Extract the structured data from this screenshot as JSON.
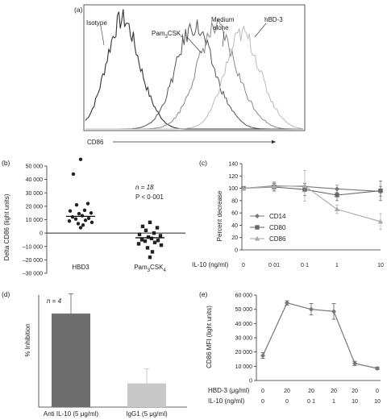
{
  "chart_data": [
    {
      "panel": "(a)",
      "type": "line",
      "xlabel": "CD86",
      "series": [
        {
          "name": "Isotype",
          "color": "#333333"
        },
        {
          "name": "Pam3CSK4",
          "color": "#555555"
        },
        {
          "name": "Medium alone",
          "color": "#888888"
        },
        {
          "name": "hBD-3",
          "color": "#bbbbbb"
        }
      ]
    },
    {
      "panel": "(b)",
      "type": "scatter",
      "ylabel": "Delta CD86 (light units)",
      "ylim": [
        -30000,
        50000
      ],
      "yticks": [
        "50 000",
        "40 000",
        "30 000",
        "20 000",
        "10 000",
        "0",
        "–10 000",
        "–20 000",
        "–30 000"
      ],
      "ytick_values": [
        50000,
        40000,
        30000,
        20000,
        10000,
        0,
        -10000,
        -20000,
        -30000
      ],
      "categories": [
        "HBD3",
        "Pam3CSK4"
      ],
      "annotation_n": "n = 18",
      "annotation_p": "P < 0·001",
      "groups": [
        {
          "name": "HBD3",
          "median": 12500,
          "values": [
            55000,
            44000,
            22000,
            21000,
            17000,
            16500,
            15000,
            14500,
            13000,
            12000,
            11000,
            10500,
            9500,
            9000,
            8000,
            7000,
            6000,
            4000
          ]
        },
        {
          "name": "Pam3CSK4",
          "median": -3500,
          "values": [
            8000,
            5000,
            4000,
            2000,
            0,
            -1000,
            -2000,
            -3000,
            -4000,
            -5000,
            -5500,
            -6000,
            -7000,
            -8000,
            -9000,
            -11000,
            -14000,
            -18000
          ]
        }
      ]
    },
    {
      "panel": "(c)",
      "type": "line",
      "ylabel": "Percent decrease",
      "ylim": [
        0,
        140
      ],
      "yticks": [
        "0",
        "20",
        "40",
        "60",
        "80",
        "100",
        "120",
        "140"
      ],
      "ytick_values": [
        0,
        20,
        40,
        60,
        80,
        100,
        120,
        140
      ],
      "xlabel": "IL-10 (ng/ml)",
      "categories": [
        "0",
        "0·01",
        "0·1",
        "1",
        "10"
      ],
      "series": [
        {
          "name": "CD14",
          "color": "#777777",
          "marker": "diamond",
          "values": [
            100,
            104,
            103,
            99,
            95
          ],
          "errors": [
            0,
            5,
            5,
            6,
            8
          ]
        },
        {
          "name": "CD80",
          "color": "#666666",
          "marker": "square",
          "values": [
            100,
            102,
            98,
            89,
            96
          ],
          "errors": [
            0,
            6,
            10,
            9,
            16
          ]
        },
        {
          "name": "CD86",
          "color": "#aaaaaa",
          "marker": "triangle",
          "values": [
            100,
            103,
            104,
            66,
            46
          ],
          "errors": [
            0,
            8,
            25,
            7,
            13
          ]
        }
      ]
    },
    {
      "panel": "(d)",
      "type": "bar",
      "ylabel": "% Inhibition",
      "annotation_n": "n = 4",
      "ylim": [
        0,
        85
      ],
      "categories": [
        "Anti IL-10 (5 μg/ml)",
        "IgG1 (5 μg/ml)"
      ],
      "values": [
        71,
        18
      ],
      "errors": [
        15,
        11
      ],
      "colors": [
        "#6e6e6e",
        "#c8c8c8"
      ]
    },
    {
      "panel": "(e)",
      "type": "line",
      "ylabel": "CD86 MFI (light units)",
      "ylim": [
        0,
        60000
      ],
      "yticks": [
        "0",
        "10 000",
        "20 000",
        "30 000",
        "40 000",
        "50 000",
        "60 000"
      ],
      "ytick_values": [
        0,
        10000,
        20000,
        30000,
        40000,
        50000,
        60000
      ],
      "row_labels": [
        "HBD-3 (μg/ml)",
        "IL-10 (ng/ml)"
      ],
      "hbd3_row": [
        "0",
        "20",
        "20",
        "20",
        "20",
        "0"
      ],
      "il10_row": [
        "0",
        "0",
        "0·1",
        "1",
        "10",
        "10"
      ],
      "values": [
        17500,
        54500,
        50000,
        48500,
        12000,
        8500
      ],
      "errors": [
        2000,
        1500,
        4000,
        5500,
        1500,
        800
      ],
      "color": "#777777"
    }
  ]
}
